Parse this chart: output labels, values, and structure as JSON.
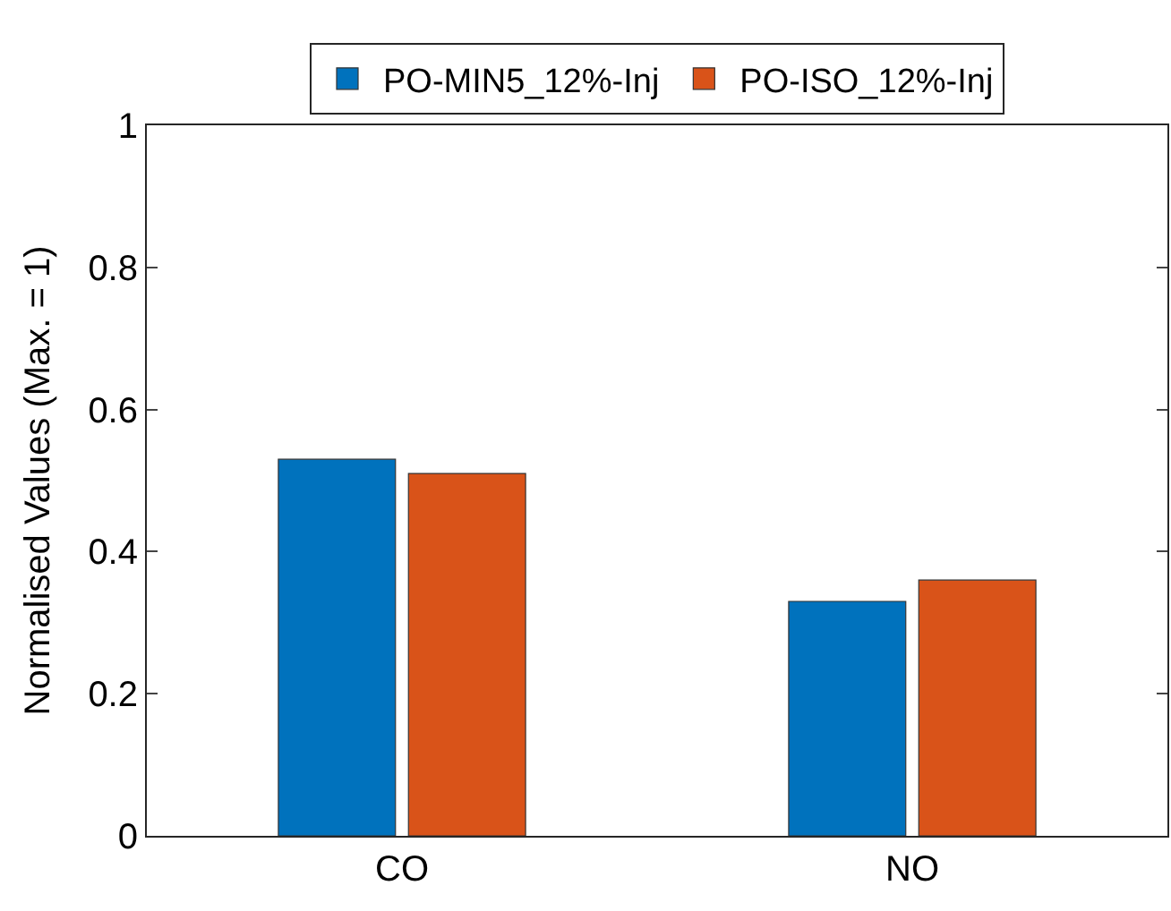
{
  "chart_data": {
    "type": "bar",
    "ylabel": "Normalised Values (Max. = 1)",
    "categories": [
      "CO",
      "NO"
    ],
    "series": [
      {
        "name": "PO-MIN5_12%-Inj",
        "color": "#0072bd",
        "values": [
          0.53,
          0.33
        ]
      },
      {
        "name": "PO-ISO_12%-Inj",
        "color": "#d95319",
        "values": [
          0.51,
          0.36
        ]
      }
    ],
    "ylim": [
      0,
      1
    ],
    "yticks": [
      0,
      0.2,
      0.4,
      0.6,
      0.8,
      1
    ],
    "legend": "top"
  }
}
